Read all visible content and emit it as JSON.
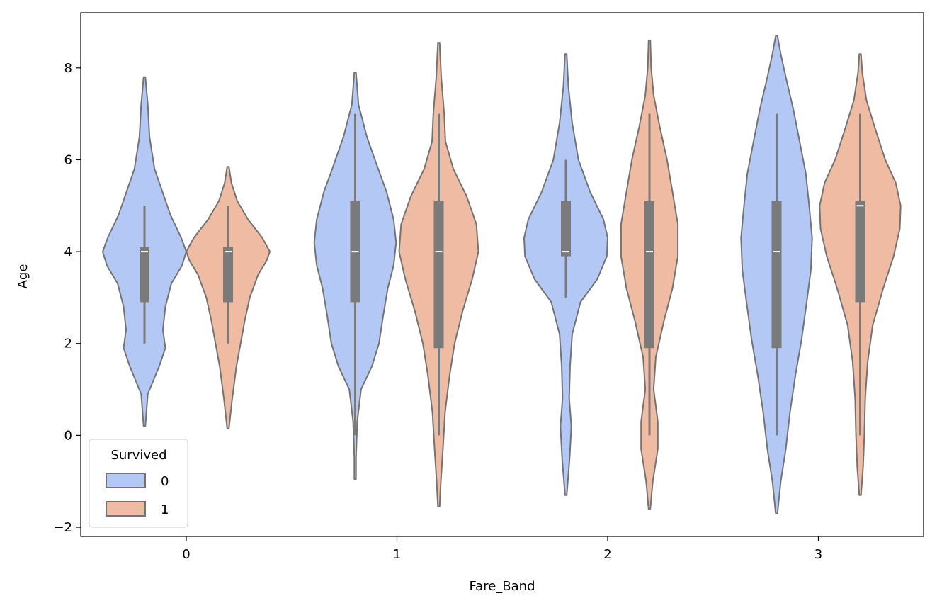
{
  "chart_data": {
    "type": "violin",
    "xlabel": "Fare_Band",
    "ylabel": "Age",
    "categories": [
      "0",
      "1",
      "2",
      "3"
    ],
    "ylim": [
      -2.2,
      9.2
    ],
    "yticks": [
      -2,
      0,
      2,
      4,
      6,
      8
    ],
    "ytick_labels": [
      "−2",
      "0",
      "2",
      "4",
      "6",
      "8"
    ],
    "grid": false,
    "legend": {
      "title": "Survived",
      "position": "lower-left",
      "entries": [
        {
          "label": "0",
          "color": "#b3c8f4"
        },
        {
          "label": "1",
          "color": "#efbba3"
        }
      ]
    },
    "series": [
      {
        "name": "0",
        "color": "#b3c8f4",
        "violins": [
          {
            "category": "0",
            "box": {
              "q1": 2.9,
              "median": 4.0,
              "q3": 4.1,
              "whisker_low": 2.0,
              "whisker_high": 5.0
            },
            "density": [
              [
                0.2,
                0.02
              ],
              [
                0.9,
                0.08
              ],
              [
                1.5,
                0.35
              ],
              [
                1.9,
                0.5
              ],
              [
                2.3,
                0.44
              ],
              [
                2.8,
                0.5
              ],
              [
                3.3,
                0.64
              ],
              [
                3.7,
                0.9
              ],
              [
                4.0,
                1.0
              ],
              [
                4.3,
                0.88
              ],
              [
                4.8,
                0.62
              ],
              [
                5.3,
                0.43
              ],
              [
                5.8,
                0.24
              ],
              [
                6.5,
                0.12
              ],
              [
                7.2,
                0.08
              ],
              [
                7.8,
                0.02
              ]
            ]
          },
          {
            "category": "1",
            "box": {
              "q1": 2.9,
              "median": 4.0,
              "q3": 5.1,
              "whisker_low": 0.0,
              "whisker_high": 7.0
            },
            "density": [
              [
                -0.95,
                0.02
              ],
              [
                -0.5,
                0.02
              ],
              [
                0.3,
                0.05
              ],
              [
                1.0,
                0.14
              ],
              [
                1.5,
                0.4
              ],
              [
                2.0,
                0.57
              ],
              [
                2.6,
                0.67
              ],
              [
                3.2,
                0.78
              ],
              [
                3.7,
                0.92
              ],
              [
                4.2,
                0.98
              ],
              [
                4.7,
                0.92
              ],
              [
                5.3,
                0.75
              ],
              [
                5.8,
                0.55
              ],
              [
                6.5,
                0.28
              ],
              [
                7.2,
                0.08
              ],
              [
                7.9,
                0.02
              ]
            ]
          },
          {
            "category": "2",
            "box": {
              "q1": 3.9,
              "median": 4.0,
              "q3": 5.1,
              "whisker_low": 3.0,
              "whisker_high": 6.0
            },
            "density": [
              [
                -1.3,
                0.02
              ],
              [
                -0.5,
                0.09
              ],
              [
                0.2,
                0.13
              ],
              [
                0.8,
                0.08
              ],
              [
                1.5,
                0.1
              ],
              [
                2.2,
                0.15
              ],
              [
                2.9,
                0.35
              ],
              [
                3.4,
                0.75
              ],
              [
                3.9,
                0.98
              ],
              [
                4.3,
                1.0
              ],
              [
                4.7,
                0.9
              ],
              [
                5.3,
                0.58
              ],
              [
                6.0,
                0.3
              ],
              [
                6.8,
                0.15
              ],
              [
                7.6,
                0.06
              ],
              [
                8.3,
                0.02
              ]
            ]
          },
          {
            "category": "3",
            "box": {
              "q1": 1.9,
              "median": 4.0,
              "q3": 5.1,
              "whisker_low": 0.0,
              "whisker_high": 7.0
            },
            "density": [
              [
                -1.7,
                0.02
              ],
              [
                -1.0,
                0.1
              ],
              [
                -0.3,
                0.22
              ],
              [
                0.5,
                0.32
              ],
              [
                1.3,
                0.45
              ],
              [
                2.1,
                0.6
              ],
              [
                2.9,
                0.72
              ],
              [
                3.6,
                0.82
              ],
              [
                4.3,
                0.85
              ],
              [
                5.0,
                0.78
              ],
              [
                5.7,
                0.7
              ],
              [
                6.4,
                0.55
              ],
              [
                7.1,
                0.4
              ],
              [
                7.8,
                0.22
              ],
              [
                8.3,
                0.1
              ],
              [
                8.7,
                0.02
              ]
            ]
          }
        ]
      },
      {
        "name": "1",
        "color": "#efbba3",
        "violins": [
          {
            "category": "0",
            "box": {
              "q1": 2.9,
              "median": 4.0,
              "q3": 4.1,
              "whisker_low": 2.0,
              "whisker_high": 5.0
            },
            "density": [
              [
                0.15,
                0.02
              ],
              [
                0.8,
                0.1
              ],
              [
                1.5,
                0.2
              ],
              [
                2.0,
                0.3
              ],
              [
                2.5,
                0.4
              ],
              [
                3.0,
                0.52
              ],
              [
                3.5,
                0.72
              ],
              [
                3.8,
                0.92
              ],
              [
                4.0,
                1.0
              ],
              [
                4.3,
                0.82
              ],
              [
                4.7,
                0.48
              ],
              [
                5.1,
                0.22
              ],
              [
                5.5,
                0.08
              ],
              [
                5.85,
                0.02
              ]
            ]
          },
          {
            "category": "1",
            "box": {
              "q1": 1.9,
              "median": 4.0,
              "q3": 5.1,
              "whisker_low": 0.0,
              "whisker_high": 7.0
            },
            "density": [
              [
                -1.55,
                0.02
              ],
              [
                -1.0,
                0.05
              ],
              [
                -0.3,
                0.1
              ],
              [
                0.5,
                0.15
              ],
              [
                1.3,
                0.26
              ],
              [
                2.0,
                0.38
              ],
              [
                2.7,
                0.57
              ],
              [
                3.4,
                0.8
              ],
              [
                4.0,
                0.95
              ],
              [
                4.6,
                0.9
              ],
              [
                5.2,
                0.67
              ],
              [
                5.8,
                0.35
              ],
              [
                6.4,
                0.16
              ],
              [
                7.0,
                0.13
              ],
              [
                7.8,
                0.06
              ],
              [
                8.55,
                0.02
              ]
            ]
          },
          {
            "category": "2",
            "box": {
              "q1": 1.9,
              "median": 4.0,
              "q3": 5.1,
              "whisker_low": 0.0,
              "whisker_high": 7.0
            },
            "density": [
              [
                -1.6,
                0.02
              ],
              [
                -1.0,
                0.08
              ],
              [
                -0.3,
                0.2
              ],
              [
                0.3,
                0.2
              ],
              [
                1.0,
                0.1
              ],
              [
                1.7,
                0.15
              ],
              [
                2.5,
                0.35
              ],
              [
                3.2,
                0.55
              ],
              [
                3.9,
                0.68
              ],
              [
                4.6,
                0.68
              ],
              [
                5.3,
                0.55
              ],
              [
                6.0,
                0.42
              ],
              [
                6.7,
                0.25
              ],
              [
                7.4,
                0.1
              ],
              [
                8.0,
                0.04
              ],
              [
                8.6,
                0.02
              ]
            ]
          },
          {
            "category": "3",
            "box": {
              "q1": 2.9,
              "median": 5.0,
              "q3": 5.1,
              "whisker_low": 0.0,
              "whisker_high": 7.0
            },
            "density": [
              [
                -1.3,
                0.02
              ],
              [
                -0.7,
                0.07
              ],
              [
                0.0,
                0.1
              ],
              [
                0.8,
                0.12
              ],
              [
                1.6,
                0.18
              ],
              [
                2.4,
                0.3
              ],
              [
                3.2,
                0.55
              ],
              [
                3.9,
                0.8
              ],
              [
                4.5,
                0.95
              ],
              [
                5.0,
                0.97
              ],
              [
                5.5,
                0.85
              ],
              [
                6.0,
                0.6
              ],
              [
                6.7,
                0.35
              ],
              [
                7.3,
                0.15
              ],
              [
                7.9,
                0.05
              ],
              [
                8.3,
                0.02
              ]
            ]
          }
        ]
      }
    ]
  }
}
